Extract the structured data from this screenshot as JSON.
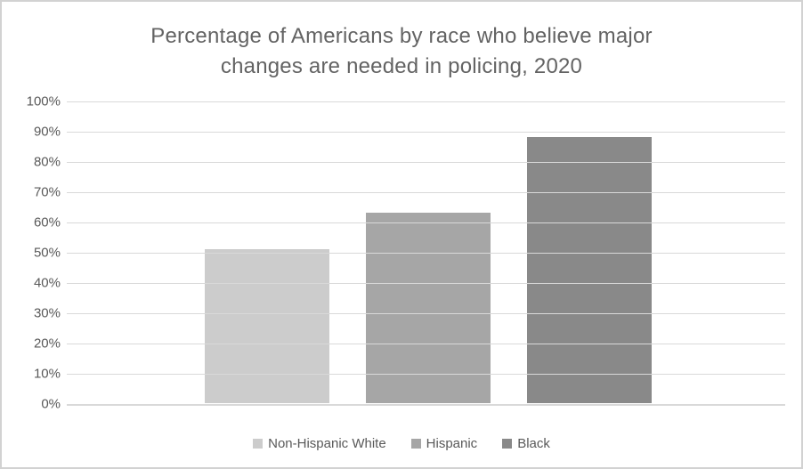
{
  "chart_data": {
    "type": "bar",
    "title": "Percentage of Americans by race who believe major changes are needed in policing, 2020",
    "categories": [
      "Non-Hispanic White",
      "Hispanic",
      "Black"
    ],
    "values": [
      51,
      63,
      88
    ],
    "bar_colors": [
      "#cccccc",
      "#a6a6a6",
      "#898989"
    ],
    "xlabel": "",
    "ylabel": "",
    "ylim": [
      0,
      100
    ],
    "ytick_step": 10,
    "ytick_labels": [
      "0%",
      "10%",
      "20%",
      "30%",
      "40%",
      "50%",
      "60%",
      "70%",
      "80%",
      "90%",
      "100%"
    ],
    "grid": true,
    "legend_position": "bottom",
    "legend_entries": [
      "Non-Hispanic White",
      "Hispanic",
      "Black"
    ]
  },
  "styles": {
    "title_color": "#636363",
    "tick_label_color": "#595959",
    "gridline_color": "#d9d9d9",
    "axis_line_color": "#d9d9d9",
    "window_border_color": "#d2d2d2",
    "background_color": "#ffffff"
  }
}
